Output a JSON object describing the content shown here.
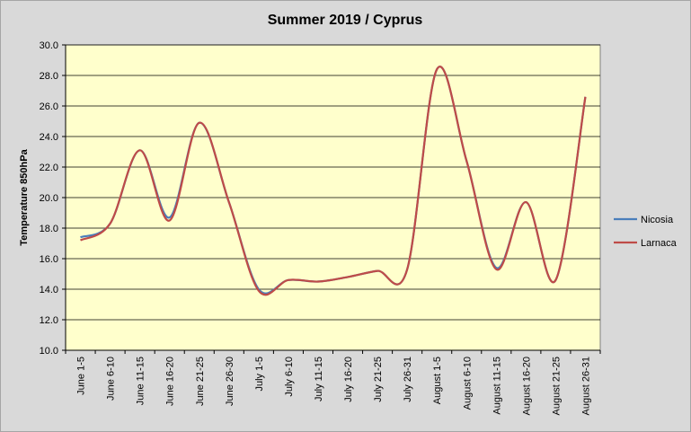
{
  "chart_data": {
    "type": "line",
    "title": "Summer 2019 / Cyprus",
    "xlabel": "",
    "ylabel": "Temperature 850hPa",
    "ylim": [
      10.0,
      30.0
    ],
    "yticks": [
      "10.0",
      "12.0",
      "14.0",
      "16.0",
      "18.0",
      "20.0",
      "22.0",
      "24.0",
      "26.0",
      "28.0",
      "30.0"
    ],
    "grid": true,
    "legend_position": "right",
    "categories": [
      "June 1-5",
      "June 6-10",
      "June 11-15",
      "June 16-20",
      "June 21-25",
      "June 26-30",
      "July 1-5",
      "July 6-10",
      "July 11-15",
      "July 16-20",
      "July 21-25",
      "July 26-31",
      "August 1-5",
      "August 6-10",
      "August 11-15",
      "August 16-20",
      "August 21-25",
      "August 26-31"
    ],
    "series": [
      {
        "name": "Nicosia",
        "color": "#4a7ebb",
        "values": [
          17.4,
          18.3,
          23.1,
          18.7,
          24.9,
          19.7,
          14.0,
          14.6,
          14.5,
          14.8,
          15.2,
          15.3,
          28.4,
          22.4,
          15.4,
          19.7,
          14.6,
          26.6
        ]
      },
      {
        "name": "Larnaca",
        "color": "#be4b48",
        "values": [
          17.2,
          18.3,
          23.1,
          18.5,
          24.9,
          19.7,
          13.9,
          14.6,
          14.5,
          14.8,
          15.2,
          15.3,
          28.4,
          22.4,
          15.3,
          19.7,
          14.6,
          26.6
        ]
      }
    ],
    "colors": {
      "plot_background": "#ffffcc",
      "chart_background": "#d9d9d9",
      "grid": "#000000"
    }
  }
}
